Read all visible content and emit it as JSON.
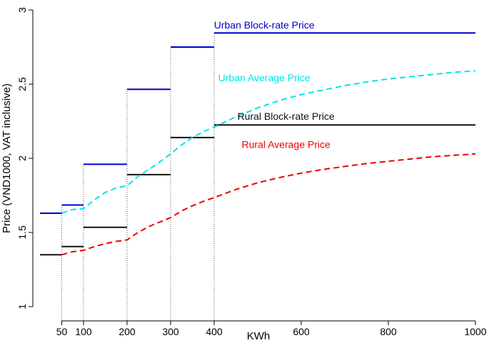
{
  "chart_data": {
    "type": "line",
    "title": "",
    "xlabel": "KWh",
    "ylabel": "Price (VND1000, VAT inclusive)",
    "xlim": [
      0,
      1000
    ],
    "ylim": [
      1,
      3
    ],
    "x_ticks": [
      50,
      100,
      200,
      300,
      400,
      600,
      800,
      1000
    ],
    "x_tick_labels": [
      "50",
      "100",
      "200",
      "300",
      "400",
      "600",
      "800",
      "1000"
    ],
    "y_ticks": [
      1,
      1.5,
      2,
      2.5,
      3
    ],
    "y_tick_labels": [
      "1",
      "1.5",
      "2",
      "2.5",
      "3"
    ],
    "block_edges": [
      0,
      50,
      100,
      200,
      300,
      400
    ],
    "series": [
      {
        "name": "Urban Block-rate Price",
        "style": "step",
        "color": "#0000cc",
        "blocks": [
          {
            "x0": 0,
            "x1": 50,
            "y": 1.63
          },
          {
            "x0": 50,
            "x1": 100,
            "y": 1.685
          },
          {
            "x0": 100,
            "x1": 200,
            "y": 1.96
          },
          {
            "x0": 200,
            "x1": 300,
            "y": 2.465
          },
          {
            "x0": 300,
            "x1": 400,
            "y": 2.75
          },
          {
            "x0": 400,
            "x1": 1000,
            "y": 2.845
          }
        ]
      },
      {
        "name": "Rural Block-rate Price",
        "style": "step",
        "color": "#111111",
        "blocks": [
          {
            "x0": 0,
            "x1": 50,
            "y": 1.35
          },
          {
            "x0": 50,
            "x1": 100,
            "y": 1.405
          },
          {
            "x0": 100,
            "x1": 200,
            "y": 1.535
          },
          {
            "x0": 200,
            "x1": 300,
            "y": 1.89
          },
          {
            "x0": 300,
            "x1": 400,
            "y": 2.14
          },
          {
            "x0": 400,
            "x1": 1000,
            "y": 2.225
          }
        ]
      },
      {
        "name": "Urban Average Price",
        "style": "dashed",
        "color": "#00e5e5",
        "x": [
          50,
          75,
          100,
          125,
          150,
          175,
          200,
          225,
          250,
          275,
          300,
          325,
          350,
          375,
          400,
          450,
          500,
          550,
          600,
          650,
          700,
          750,
          800,
          850,
          900,
          950,
          1000
        ],
        "y": [
          1.63,
          1.655,
          1.66,
          1.72,
          1.77,
          1.8,
          1.815,
          1.878,
          1.925,
          1.975,
          2.03,
          2.09,
          2.14,
          2.18,
          2.21,
          2.28,
          2.34,
          2.39,
          2.43,
          2.46,
          2.49,
          2.515,
          2.535,
          2.55,
          2.565,
          2.58,
          2.59
        ]
      },
      {
        "name": "Rural Average Price",
        "style": "dashed",
        "color": "#ee0000",
        "x": [
          50,
          75,
          100,
          125,
          150,
          175,
          200,
          225,
          250,
          275,
          300,
          325,
          350,
          375,
          400,
          450,
          500,
          550,
          600,
          650,
          700,
          750,
          800,
          850,
          900,
          950,
          1000
        ],
        "y": [
          1.35,
          1.37,
          1.38,
          1.405,
          1.425,
          1.44,
          1.45,
          1.5,
          1.54,
          1.57,
          1.6,
          1.645,
          1.68,
          1.71,
          1.735,
          1.79,
          1.835,
          1.87,
          1.9,
          1.925,
          1.945,
          1.965,
          1.98,
          1.995,
          2.01,
          2.02,
          2.03
        ]
      }
    ],
    "annotations": [
      {
        "text": "Urban Block-rate Price",
        "x": 515,
        "y": 2.875,
        "color": "#0000cc"
      },
      {
        "text": "Urban Average Price",
        "x": 515,
        "y": 2.52,
        "color": "#00e5e5"
      },
      {
        "text": "Rural Block-rate Price",
        "x": 565,
        "y": 2.26,
        "color": "#111111"
      },
      {
        "text": "Rural Average Price",
        "x": 565,
        "y": 2.07,
        "color": "#ee0000"
      }
    ],
    "grid": false,
    "legend": "none"
  }
}
